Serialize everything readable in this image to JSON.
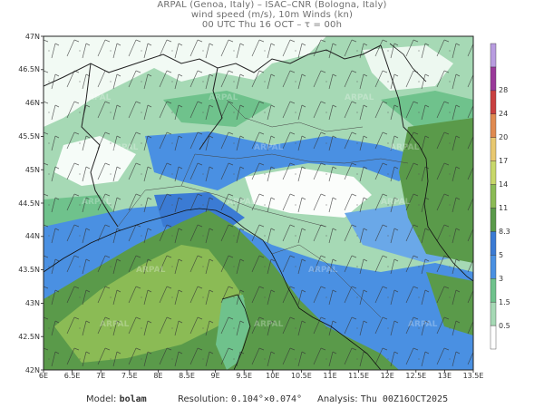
{
  "header": {
    "line1": "ARPAL (Genoa, Italy)  –  ISAC–CNR (Bologna, Italy)",
    "line2": "wind speed (m/s), 10m Winds (kn)",
    "line3": "00 UTC Thu 16 OCT  –  τ = 00h"
  },
  "axes": {
    "lat_labels": [
      "47N",
      "46.5N",
      "46N",
      "45.5N",
      "45N",
      "44.5N",
      "44N",
      "43.5N",
      "43N",
      "42.5N",
      "42N"
    ],
    "lat_values": [
      47,
      46.5,
      46,
      45.5,
      45,
      44.5,
      44,
      43.5,
      43,
      42.5,
      42
    ],
    "lon_labels": [
      "6E",
      "6.5E",
      "7E",
      "7.5E",
      "8E",
      "8.5E",
      "9E",
      "9.5E",
      "10E",
      "10.5E",
      "11E",
      "11.5E",
      "12E",
      "12.5E",
      "13E",
      "13.5E"
    ],
    "lon_values": [
      6,
      6.5,
      7,
      7.5,
      8,
      8.5,
      9,
      9.5,
      10,
      10.5,
      11,
      11.5,
      12,
      12.5,
      13,
      13.5
    ],
    "lon_range": [
      6,
      13.5
    ],
    "lat_range": [
      42,
      47
    ]
  },
  "colorbar": {
    "levels": [
      "0.5",
      "1.5",
      "3",
      "5",
      "8.3",
      "11",
      "14",
      "17",
      "20",
      "24",
      "28"
    ],
    "colors": [
      "#ffffff",
      "#a6d9b5",
      "#6fc28c",
      "#4a90e2",
      "#3b7bd4",
      "#5a9a4a",
      "#8bbb55",
      "#c8d86a",
      "#e8c870",
      "#e08a50",
      "#c94040",
      "#9a3a9a",
      "#b89ce0"
    ]
  },
  "watermark": "ARPAL",
  "footer": {
    "model_label": "Model:",
    "model_value": "bolam",
    "resolution_label": "Resolution:",
    "resolution_value": "0.104°×0.074°",
    "analysis_label": "Analysis:",
    "analysis_value": "Thu 00Z16OCT2025"
  }
}
